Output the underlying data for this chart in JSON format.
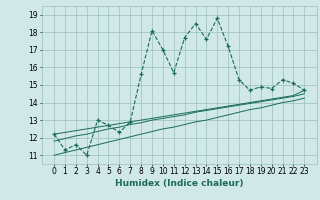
{
  "xlabel": "Humidex (Indice chaleur)",
  "x_values": [
    0,
    1,
    2,
    3,
    4,
    5,
    6,
    7,
    8,
    9,
    10,
    11,
    12,
    13,
    14,
    15,
    16,
    17,
    18,
    19,
    20,
    21,
    22,
    23
  ],
  "y_main": [
    12.2,
    11.3,
    11.6,
    11.0,
    13.0,
    12.7,
    12.3,
    12.9,
    15.6,
    18.1,
    17.0,
    15.7,
    17.7,
    18.5,
    17.6,
    18.8,
    17.2,
    15.3,
    14.7,
    14.9,
    14.8,
    15.3,
    15.1,
    14.7
  ],
  "y_line1": [
    12.2,
    12.3,
    12.4,
    12.5,
    12.6,
    12.7,
    12.8,
    12.9,
    13.0,
    13.1,
    13.2,
    13.3,
    13.4,
    13.5,
    13.6,
    13.7,
    13.8,
    13.9,
    14.0,
    14.1,
    14.2,
    14.3,
    14.4,
    14.7
  ],
  "y_line2": [
    11.8,
    11.95,
    12.1,
    12.2,
    12.35,
    12.5,
    12.6,
    12.75,
    12.85,
    13.0,
    13.1,
    13.2,
    13.3,
    13.45,
    13.55,
    13.65,
    13.75,
    13.85,
    13.95,
    14.05,
    14.15,
    14.25,
    14.35,
    14.5
  ],
  "y_line3": [
    11.0,
    11.15,
    11.3,
    11.45,
    11.6,
    11.75,
    11.9,
    12.05,
    12.2,
    12.35,
    12.5,
    12.6,
    12.75,
    12.9,
    13.0,
    13.15,
    13.3,
    13.45,
    13.6,
    13.7,
    13.85,
    14.0,
    14.1,
    14.25
  ],
  "line_color": "#1a6b5a",
  "bg_color": "#d0e8e8",
  "grid_color": "#9bbfbf",
  "ylim": [
    10.5,
    19.5
  ],
  "yticks": [
    11,
    12,
    13,
    14,
    15,
    16,
    17,
    18,
    19
  ],
  "xticks": [
    0,
    1,
    2,
    3,
    4,
    5,
    6,
    7,
    8,
    9,
    10,
    11,
    12,
    13,
    14,
    15,
    16,
    17,
    18,
    19,
    20,
    21,
    22,
    23
  ],
  "xlabel_fontsize": 6.5,
  "tick_fontsize": 5.5
}
